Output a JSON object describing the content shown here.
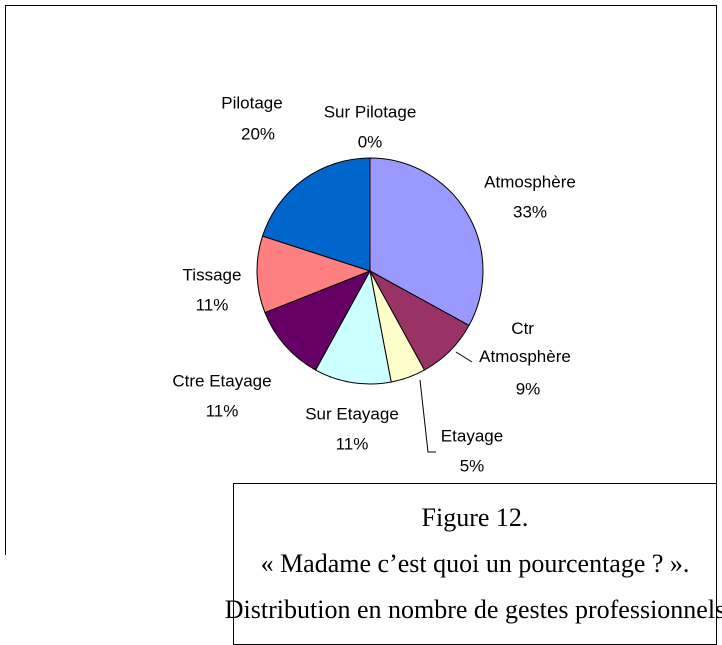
{
  "chart_data": {
    "type": "pie",
    "categories": [
      "Atmosphère",
      "Ctr Atmosphère",
      "Etayage",
      "Sur Etayage",
      "Ctre Etayage",
      "Tissage",
      "Pilotage",
      "Sur Pilotage"
    ],
    "values": [
      33,
      9,
      5,
      11,
      11,
      11,
      20,
      0
    ],
    "value_labels": [
      "33%",
      "9%",
      "5%",
      "11%",
      "11%",
      "11%",
      "20%",
      "0%"
    ],
    "colors": [
      "#9999ff",
      "#993366",
      "#ffffcc",
      "#ccffff",
      "#660066",
      "#ff8080",
      "#0066cc",
      "#ccccff"
    ]
  },
  "caption": [
    "Figure 12.",
    "« Madame c’est quoi un pourcentage ? ».",
    "Distribution en nombre de gestes professionnels"
  ]
}
